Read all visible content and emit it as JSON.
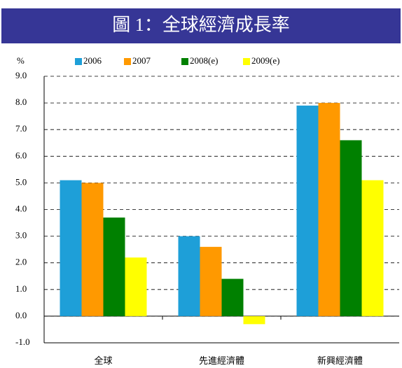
{
  "chart_data": {
    "type": "bar",
    "title": "圖 1：全球經濟成長率",
    "ylabel": "%",
    "categories": [
      "全球",
      "先進經濟體",
      "新興經濟體"
    ],
    "series": [
      {
        "name": "2006",
        "color": "#1e9fd8",
        "values": [
          5.1,
          3.0,
          7.9
        ]
      },
      {
        "name": "2007",
        "color": "#ff9900",
        "values": [
          5.0,
          2.6,
          8.0
        ]
      },
      {
        "name": "2008(e)",
        "color": "#008000",
        "values": [
          3.7,
          1.4,
          6.6
        ]
      },
      {
        "name": "2009(e)",
        "color": "#ffff00",
        "values": [
          2.2,
          -0.3,
          5.1
        ]
      }
    ],
    "ylim": [
      -1,
      9
    ],
    "yticks": [
      {
        "value": -1,
        "label": "-1.0"
      },
      {
        "value": 0,
        "label": "0.0"
      },
      {
        "value": 1,
        "label": "1.0"
      },
      {
        "value": 2,
        "label": "2.0"
      },
      {
        "value": 3,
        "label": "3.0"
      },
      {
        "value": 4,
        "label": "4.0"
      },
      {
        "value": 5,
        "label": "5.0"
      },
      {
        "value": 6,
        "label": "6.0"
      },
      {
        "value": 7,
        "label": "7.0"
      },
      {
        "value": 8,
        "label": "8.0"
      },
      {
        "value": 9,
        "label": "9.0"
      }
    ],
    "grid": true
  }
}
